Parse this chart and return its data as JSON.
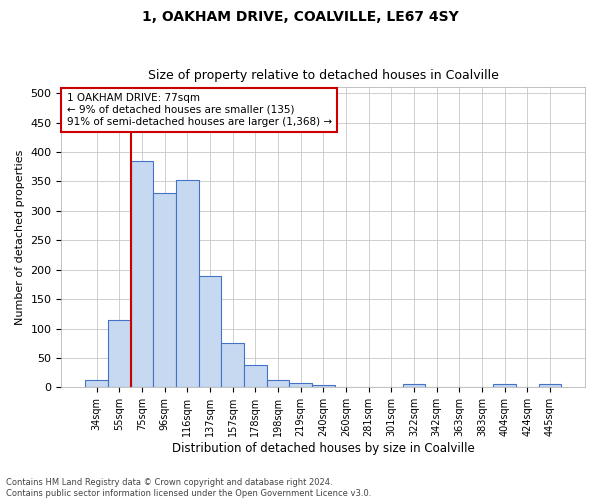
{
  "title": "1, OAKHAM DRIVE, COALVILLE, LE67 4SY",
  "subtitle": "Size of property relative to detached houses in Coalville",
  "xlabel": "Distribution of detached houses by size in Coalville",
  "ylabel": "Number of detached properties",
  "bar_labels": [
    "34sqm",
    "55sqm",
    "75sqm",
    "96sqm",
    "116sqm",
    "137sqm",
    "157sqm",
    "178sqm",
    "198sqm",
    "219sqm",
    "240sqm",
    "260sqm",
    "281sqm",
    "301sqm",
    "322sqm",
    "342sqm",
    "363sqm",
    "383sqm",
    "404sqm",
    "424sqm",
    "445sqm"
  ],
  "bar_values": [
    12,
    115,
    385,
    330,
    353,
    190,
    75,
    38,
    12,
    7,
    4,
    0,
    0,
    0,
    5,
    0,
    0,
    0,
    5,
    0,
    5
  ],
  "bar_color": "#c6d9f0",
  "bar_edge_color": "#4472c4",
  "vline_color": "#cc0000",
  "vline_x_index": 2,
  "annotation_text": "1 OAKHAM DRIVE: 77sqm\n← 9% of detached houses are smaller (135)\n91% of semi-detached houses are larger (1,368) →",
  "annotation_box_color": "#cc0000",
  "ylim": [
    0,
    510
  ],
  "yticks": [
    0,
    50,
    100,
    150,
    200,
    250,
    300,
    350,
    400,
    450,
    500
  ],
  "footer_line1": "Contains HM Land Registry data © Crown copyright and database right 2024.",
  "footer_line2": "Contains public sector information licensed under the Open Government Licence v3.0.",
  "bg_color": "#ffffff",
  "grid_color": "#c8c8c8"
}
